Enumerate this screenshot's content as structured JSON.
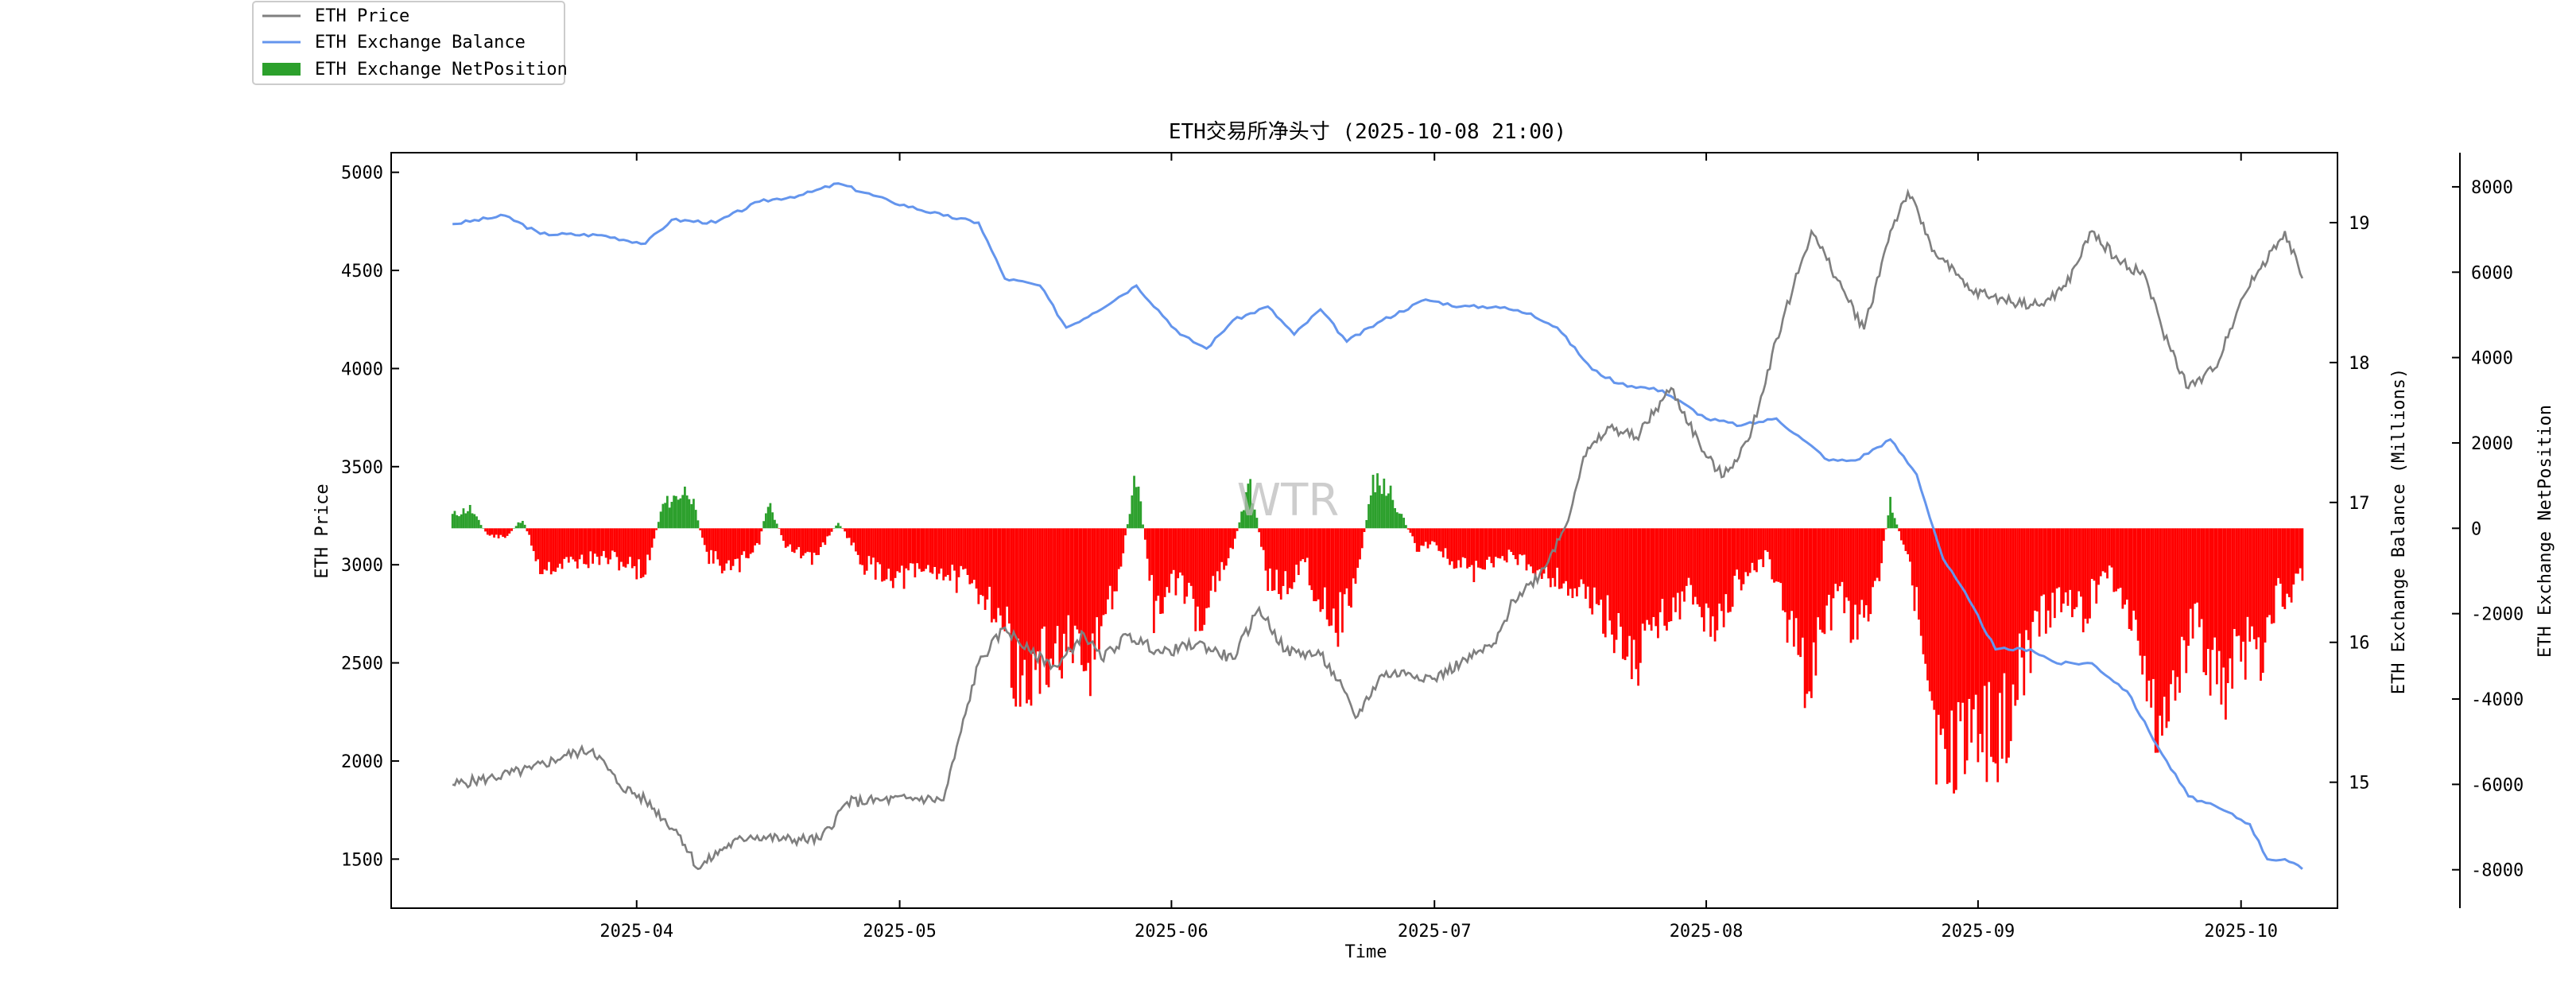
{
  "chart_data": {
    "type": "line",
    "title": "ETH交易所净头寸 (2025-10-08 21:00)",
    "watermark": "WTR",
    "xlabel": "Time",
    "x_ticks": [
      "2025-04",
      "2025-05",
      "2025-06",
      "2025-07",
      "2025-08",
      "2025-09",
      "2025-10"
    ],
    "x_range": [
      "2025-03-11",
      "2025-10-08"
    ],
    "axes": {
      "left": {
        "label": "ETH Price",
        "range": [
          1250,
          5100
        ],
        "ticks": [
          1500,
          2000,
          2500,
          3000,
          3500,
          4000,
          4500,
          5000
        ]
      },
      "right1": {
        "label": "ETH Exchange Balance (Millions)",
        "range": [
          14.1,
          19.5
        ],
        "ticks": [
          15,
          16,
          17,
          18,
          19
        ]
      },
      "right2": {
        "label": "ETH Exchange NetPosition",
        "range": [
          -8900,
          8800
        ],
        "ticks": [
          -8000,
          -6000,
          -4000,
          -2000,
          0,
          2000,
          4000,
          6000,
          8000
        ]
      }
    },
    "legend": {
      "placement": "top-left (outside)",
      "entries": [
        {
          "label": "ETH Price",
          "color": "#7f7f7f",
          "kind": "line"
        },
        {
          "label": "ETH Exchange Balance",
          "color": "#6495ed",
          "kind": "line"
        },
        {
          "label": "ETH Exchange NetPosition",
          "color": "#2ca02c",
          "kind": "bar"
        }
      ]
    },
    "colors": {
      "price": "#7f7f7f",
      "balance": "#6495ed",
      "net_positive": "#2ca02c",
      "net_negative": "#ff0000"
    },
    "series": [
      {
        "name": "ETH Price",
        "axis": "left",
        "points": [
          [
            "2025-03-11",
            1880
          ],
          [
            "2025-03-15",
            1910
          ],
          [
            "2025-03-20",
            1960
          ],
          [
            "2025-03-24",
            2030
          ],
          [
            "2025-03-27",
            2060
          ],
          [
            "2025-03-30",
            1880
          ],
          [
            "2025-04-02",
            1800
          ],
          [
            "2025-04-06",
            1620
          ],
          [
            "2025-04-08",
            1450
          ],
          [
            "2025-04-11",
            1560
          ],
          [
            "2025-04-14",
            1620
          ],
          [
            "2025-04-18",
            1600
          ],
          [
            "2025-04-22",
            1600
          ],
          [
            "2025-04-25",
            1790
          ],
          [
            "2025-04-29",
            1800
          ],
          [
            "2025-05-03",
            1810
          ],
          [
            "2025-05-06",
            1800
          ],
          [
            "2025-05-08",
            2150
          ],
          [
            "2025-05-10",
            2500
          ],
          [
            "2025-05-13",
            2680
          ],
          [
            "2025-05-16",
            2550
          ],
          [
            "2025-05-19",
            2480
          ],
          [
            "2025-05-22",
            2650
          ],
          [
            "2025-05-24",
            2520
          ],
          [
            "2025-05-27",
            2640
          ],
          [
            "2025-05-31",
            2550
          ],
          [
            "2025-06-04",
            2600
          ],
          [
            "2025-06-08",
            2520
          ],
          [
            "2025-06-11",
            2780
          ],
          [
            "2025-06-14",
            2560
          ],
          [
            "2025-06-18",
            2540
          ],
          [
            "2025-06-20",
            2410
          ],
          [
            "2025-06-22",
            2220
          ],
          [
            "2025-06-25",
            2440
          ],
          [
            "2025-06-28",
            2450
          ],
          [
            "2025-07-01",
            2420
          ],
          [
            "2025-07-04",
            2500
          ],
          [
            "2025-07-08",
            2600
          ],
          [
            "2025-07-10",
            2820
          ],
          [
            "2025-07-13",
            2950
          ],
          [
            "2025-07-16",
            3200
          ],
          [
            "2025-07-18",
            3550
          ],
          [
            "2025-07-21",
            3700
          ],
          [
            "2025-07-24",
            3650
          ],
          [
            "2025-07-28",
            3900
          ],
          [
            "2025-08-01",
            3550
          ],
          [
            "2025-08-03",
            3450
          ],
          [
            "2025-08-06",
            3650
          ],
          [
            "2025-08-09",
            4150
          ],
          [
            "2025-08-13",
            4700
          ],
          [
            "2025-08-16",
            4450
          ],
          [
            "2025-08-19",
            4200
          ],
          [
            "2025-08-22",
            4700
          ],
          [
            "2025-08-24",
            4900
          ],
          [
            "2025-08-27",
            4600
          ],
          [
            "2025-08-31",
            4400
          ],
          [
            "2025-09-04",
            4350
          ],
          [
            "2025-09-08",
            4320
          ],
          [
            "2025-09-11",
            4420
          ],
          [
            "2025-09-14",
            4700
          ],
          [
            "2025-09-17",
            4550
          ],
          [
            "2025-09-20",
            4480
          ],
          [
            "2025-09-22",
            4200
          ],
          [
            "2025-09-25",
            3900
          ],
          [
            "2025-09-28",
            4000
          ],
          [
            "2025-10-01",
            4350
          ],
          [
            "2025-10-03",
            4500
          ],
          [
            "2025-10-06",
            4700
          ],
          [
            "2025-10-08",
            4460
          ]
        ]
      },
      {
        "name": "ETH Exchange Balance",
        "axis": "right1",
        "points": [
          [
            "2025-03-11",
            18.99
          ],
          [
            "2025-03-17",
            19.05
          ],
          [
            "2025-03-21",
            18.92
          ],
          [
            "2025-03-28",
            18.91
          ],
          [
            "2025-04-02",
            18.85
          ],
          [
            "2025-04-05",
            19.02
          ],
          [
            "2025-04-10",
            19.0
          ],
          [
            "2025-04-15",
            19.15
          ],
          [
            "2025-04-20",
            19.2
          ],
          [
            "2025-04-24",
            19.28
          ],
          [
            "2025-04-30",
            19.15
          ],
          [
            "2025-05-06",
            19.05
          ],
          [
            "2025-05-10",
            19.0
          ],
          [
            "2025-05-13",
            18.6
          ],
          [
            "2025-05-17",
            18.55
          ],
          [
            "2025-05-20",
            18.25
          ],
          [
            "2025-05-23",
            18.35
          ],
          [
            "2025-05-28",
            18.55
          ],
          [
            "2025-06-02",
            18.2
          ],
          [
            "2025-06-05",
            18.1
          ],
          [
            "2025-06-08",
            18.3
          ],
          [
            "2025-06-12",
            18.4
          ],
          [
            "2025-06-15",
            18.2
          ],
          [
            "2025-06-18",
            18.38
          ],
          [
            "2025-06-21",
            18.15
          ],
          [
            "2025-06-25",
            18.3
          ],
          [
            "2025-06-30",
            18.45
          ],
          [
            "2025-07-04",
            18.4
          ],
          [
            "2025-07-08",
            18.4
          ],
          [
            "2025-07-12",
            18.35
          ],
          [
            "2025-07-15",
            18.25
          ],
          [
            "2025-07-19",
            17.95
          ],
          [
            "2025-07-22",
            17.85
          ],
          [
            "2025-07-27",
            17.8
          ],
          [
            "2025-08-01",
            17.6
          ],
          [
            "2025-08-05",
            17.55
          ],
          [
            "2025-08-09",
            17.6
          ],
          [
            "2025-08-12",
            17.45
          ],
          [
            "2025-08-15",
            17.3
          ],
          [
            "2025-08-18",
            17.3
          ],
          [
            "2025-08-22",
            17.45
          ],
          [
            "2025-08-25",
            17.2
          ],
          [
            "2025-08-28",
            16.6
          ],
          [
            "2025-08-31",
            16.3
          ],
          [
            "2025-09-03",
            15.95
          ],
          [
            "2025-09-07",
            15.95
          ],
          [
            "2025-09-10",
            15.85
          ],
          [
            "2025-09-14",
            15.85
          ],
          [
            "2025-09-18",
            15.65
          ],
          [
            "2025-09-22",
            15.2
          ],
          [
            "2025-09-25",
            14.9
          ],
          [
            "2025-09-29",
            14.8
          ],
          [
            "2025-10-02",
            14.7
          ],
          [
            "2025-10-04",
            14.45
          ],
          [
            "2025-10-06",
            14.45
          ],
          [
            "2025-10-08",
            14.38
          ]
        ]
      },
      {
        "name": "ETH Exchange NetPosition",
        "axis": "right2",
        "kind": "bar",
        "points": [
          [
            "2025-03-11",
            400
          ],
          [
            "2025-03-13",
            600
          ],
          [
            "2025-03-15",
            -200
          ],
          [
            "2025-03-17",
            -300
          ],
          [
            "2025-03-19",
            300
          ],
          [
            "2025-03-21",
            -1200
          ],
          [
            "2025-03-25",
            -1000
          ],
          [
            "2025-03-29",
            -900
          ],
          [
            "2025-04-02",
            -1300
          ],
          [
            "2025-04-04",
            700
          ],
          [
            "2025-04-07",
            1200
          ],
          [
            "2025-04-09",
            -800
          ],
          [
            "2025-04-12",
            -1300
          ],
          [
            "2025-04-15",
            -400
          ],
          [
            "2025-04-16",
            800
          ],
          [
            "2025-04-18",
            -500
          ],
          [
            "2025-04-21",
            -1000
          ],
          [
            "2025-04-24",
            200
          ],
          [
            "2025-04-27",
            -1100
          ],
          [
            "2025-05-01",
            -1500
          ],
          [
            "2025-05-05",
            -1200
          ],
          [
            "2025-05-08",
            -1600
          ],
          [
            "2025-05-11",
            -2000
          ],
          [
            "2025-05-13",
            -3000
          ],
          [
            "2025-05-15",
            -5000
          ],
          [
            "2025-05-18",
            -4000
          ],
          [
            "2025-05-20",
            -3500
          ],
          [
            "2025-05-22",
            -4700
          ],
          [
            "2025-05-24",
            -3000
          ],
          [
            "2025-05-26",
            -1500
          ],
          [
            "2025-05-28",
            1700
          ],
          [
            "2025-05-30",
            -2500
          ],
          [
            "2025-06-02",
            -1500
          ],
          [
            "2025-06-04",
            -2700
          ],
          [
            "2025-06-06",
            -1800
          ],
          [
            "2025-06-08",
            -600
          ],
          [
            "2025-06-10",
            1400
          ],
          [
            "2025-06-12",
            -1600
          ],
          [
            "2025-06-14",
            -1800
          ],
          [
            "2025-06-16",
            -900
          ],
          [
            "2025-06-18",
            -2200
          ],
          [
            "2025-06-20",
            -2800
          ],
          [
            "2025-06-22",
            -1700
          ],
          [
            "2025-06-24",
            1400
          ],
          [
            "2025-06-26",
            1100
          ],
          [
            "2025-06-29",
            -600
          ],
          [
            "2025-07-01",
            -400
          ],
          [
            "2025-07-03",
            -1100
          ],
          [
            "2025-07-06",
            -1300
          ],
          [
            "2025-07-09",
            -800
          ],
          [
            "2025-07-12",
            -1100
          ],
          [
            "2025-07-15",
            -1500
          ],
          [
            "2025-07-18",
            -2000
          ],
          [
            "2025-07-21",
            -2800
          ],
          [
            "2025-07-24",
            -4000
          ],
          [
            "2025-07-27",
            -2500
          ],
          [
            "2025-07-30",
            -2000
          ],
          [
            "2025-08-02",
            -3000
          ],
          [
            "2025-08-05",
            -1500
          ],
          [
            "2025-08-08",
            -800
          ],
          [
            "2025-08-10",
            -2500
          ],
          [
            "2025-08-12",
            -4500
          ],
          [
            "2025-08-14",
            -3500
          ],
          [
            "2025-08-16",
            -2000
          ],
          [
            "2025-08-18",
            -3000
          ],
          [
            "2025-08-20",
            -2500
          ],
          [
            "2025-08-22",
            800
          ],
          [
            "2025-08-24",
            -1000
          ],
          [
            "2025-08-26",
            -3500
          ],
          [
            "2025-08-28",
            -8000
          ],
          [
            "2025-08-30",
            -6000
          ],
          [
            "2025-09-01",
            -5500
          ],
          [
            "2025-09-03",
            -7000
          ],
          [
            "2025-09-05",
            -5000
          ],
          [
            "2025-09-07",
            -3500
          ],
          [
            "2025-09-10",
            -2000
          ],
          [
            "2025-09-13",
            -2500
          ],
          [
            "2025-09-16",
            -1200
          ],
          [
            "2025-09-19",
            -3000
          ],
          [
            "2025-09-22",
            -6200
          ],
          [
            "2025-09-24",
            -4000
          ],
          [
            "2025-09-26",
            -3000
          ],
          [
            "2025-09-29",
            -5200
          ],
          [
            "2025-10-01",
            -3500
          ],
          [
            "2025-10-03",
            -4000
          ],
          [
            "2025-10-05",
            -2000
          ],
          [
            "2025-10-07",
            -1800
          ],
          [
            "2025-10-08",
            -1500
          ]
        ]
      }
    ]
  }
}
